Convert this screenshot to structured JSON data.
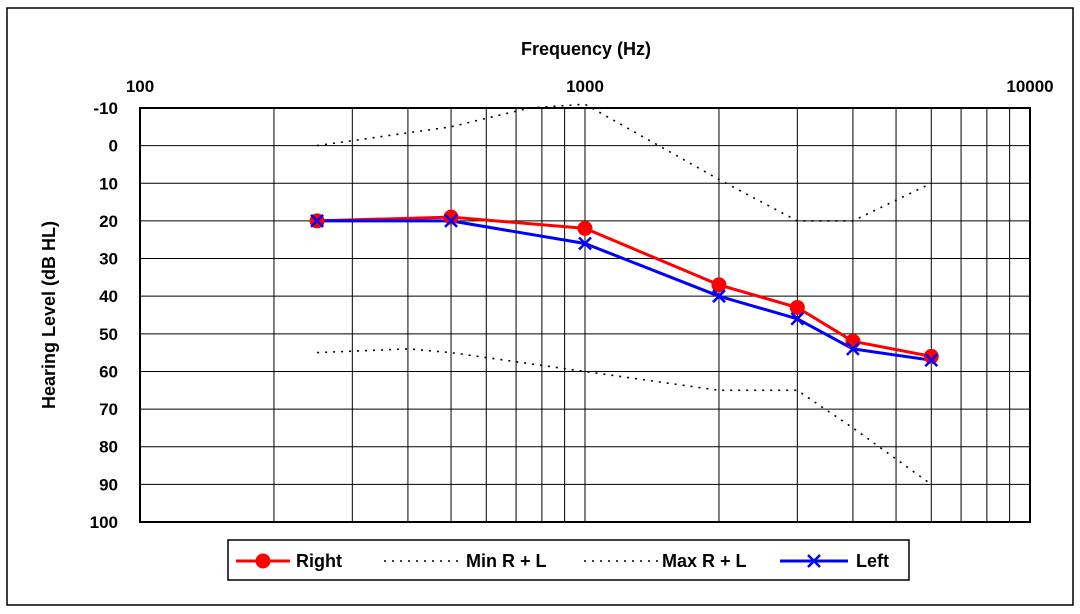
{
  "chart_data": {
    "type": "line",
    "xlabel": "Frequency (Hz)",
    "ylabel": "Hearing Level (dB HL)",
    "x_scale": "log",
    "xlim": [
      100,
      10000
    ],
    "ylim": [
      -10,
      100
    ],
    "y_inverted": true,
    "grid": true,
    "legend_position": "bottom",
    "x_tick_labels": [
      {
        "value": 100,
        "label": "100"
      },
      {
        "value": 1000,
        "label": "1000"
      },
      {
        "value": 10000,
        "label": "10000"
      }
    ],
    "y_ticks": [
      -10,
      0,
      10,
      20,
      30,
      40,
      50,
      60,
      70,
      80,
      90,
      100
    ],
    "series": [
      {
        "name": "Right",
        "color": "#ff0000",
        "line_style": "solid",
        "marker": "circle",
        "points": [
          [
            250,
            20
          ],
          [
            500,
            19
          ],
          [
            1000,
            22
          ],
          [
            2000,
            37
          ],
          [
            3000,
            43
          ],
          [
            4000,
            52
          ],
          [
            6000,
            56
          ]
        ]
      },
      {
        "name": "Min R + L",
        "color": "#000000",
        "line_style": "dotted",
        "marker": "none",
        "points": [
          [
            250,
            0
          ],
          [
            500,
            -5
          ],
          [
            750,
            -10
          ],
          [
            1000,
            -11
          ],
          [
            2000,
            9
          ],
          [
            3000,
            20
          ],
          [
            4000,
            20
          ],
          [
            6000,
            10
          ]
        ]
      },
      {
        "name": "Max R + L",
        "color": "#000000",
        "line_style": "dotted",
        "marker": "none",
        "points": [
          [
            250,
            55
          ],
          [
            400,
            54
          ],
          [
            500,
            55
          ],
          [
            1000,
            60
          ],
          [
            2000,
            65
          ],
          [
            3000,
            65
          ],
          [
            4000,
            75
          ],
          [
            6000,
            90
          ]
        ]
      },
      {
        "name": "Left",
        "color": "#0000ff",
        "line_style": "solid",
        "marker": "x",
        "points": [
          [
            250,
            20
          ],
          [
            500,
            20
          ],
          [
            1000,
            26
          ],
          [
            2000,
            40
          ],
          [
            3000,
            46
          ],
          [
            4000,
            54
          ],
          [
            6000,
            57
          ]
        ]
      }
    ]
  }
}
